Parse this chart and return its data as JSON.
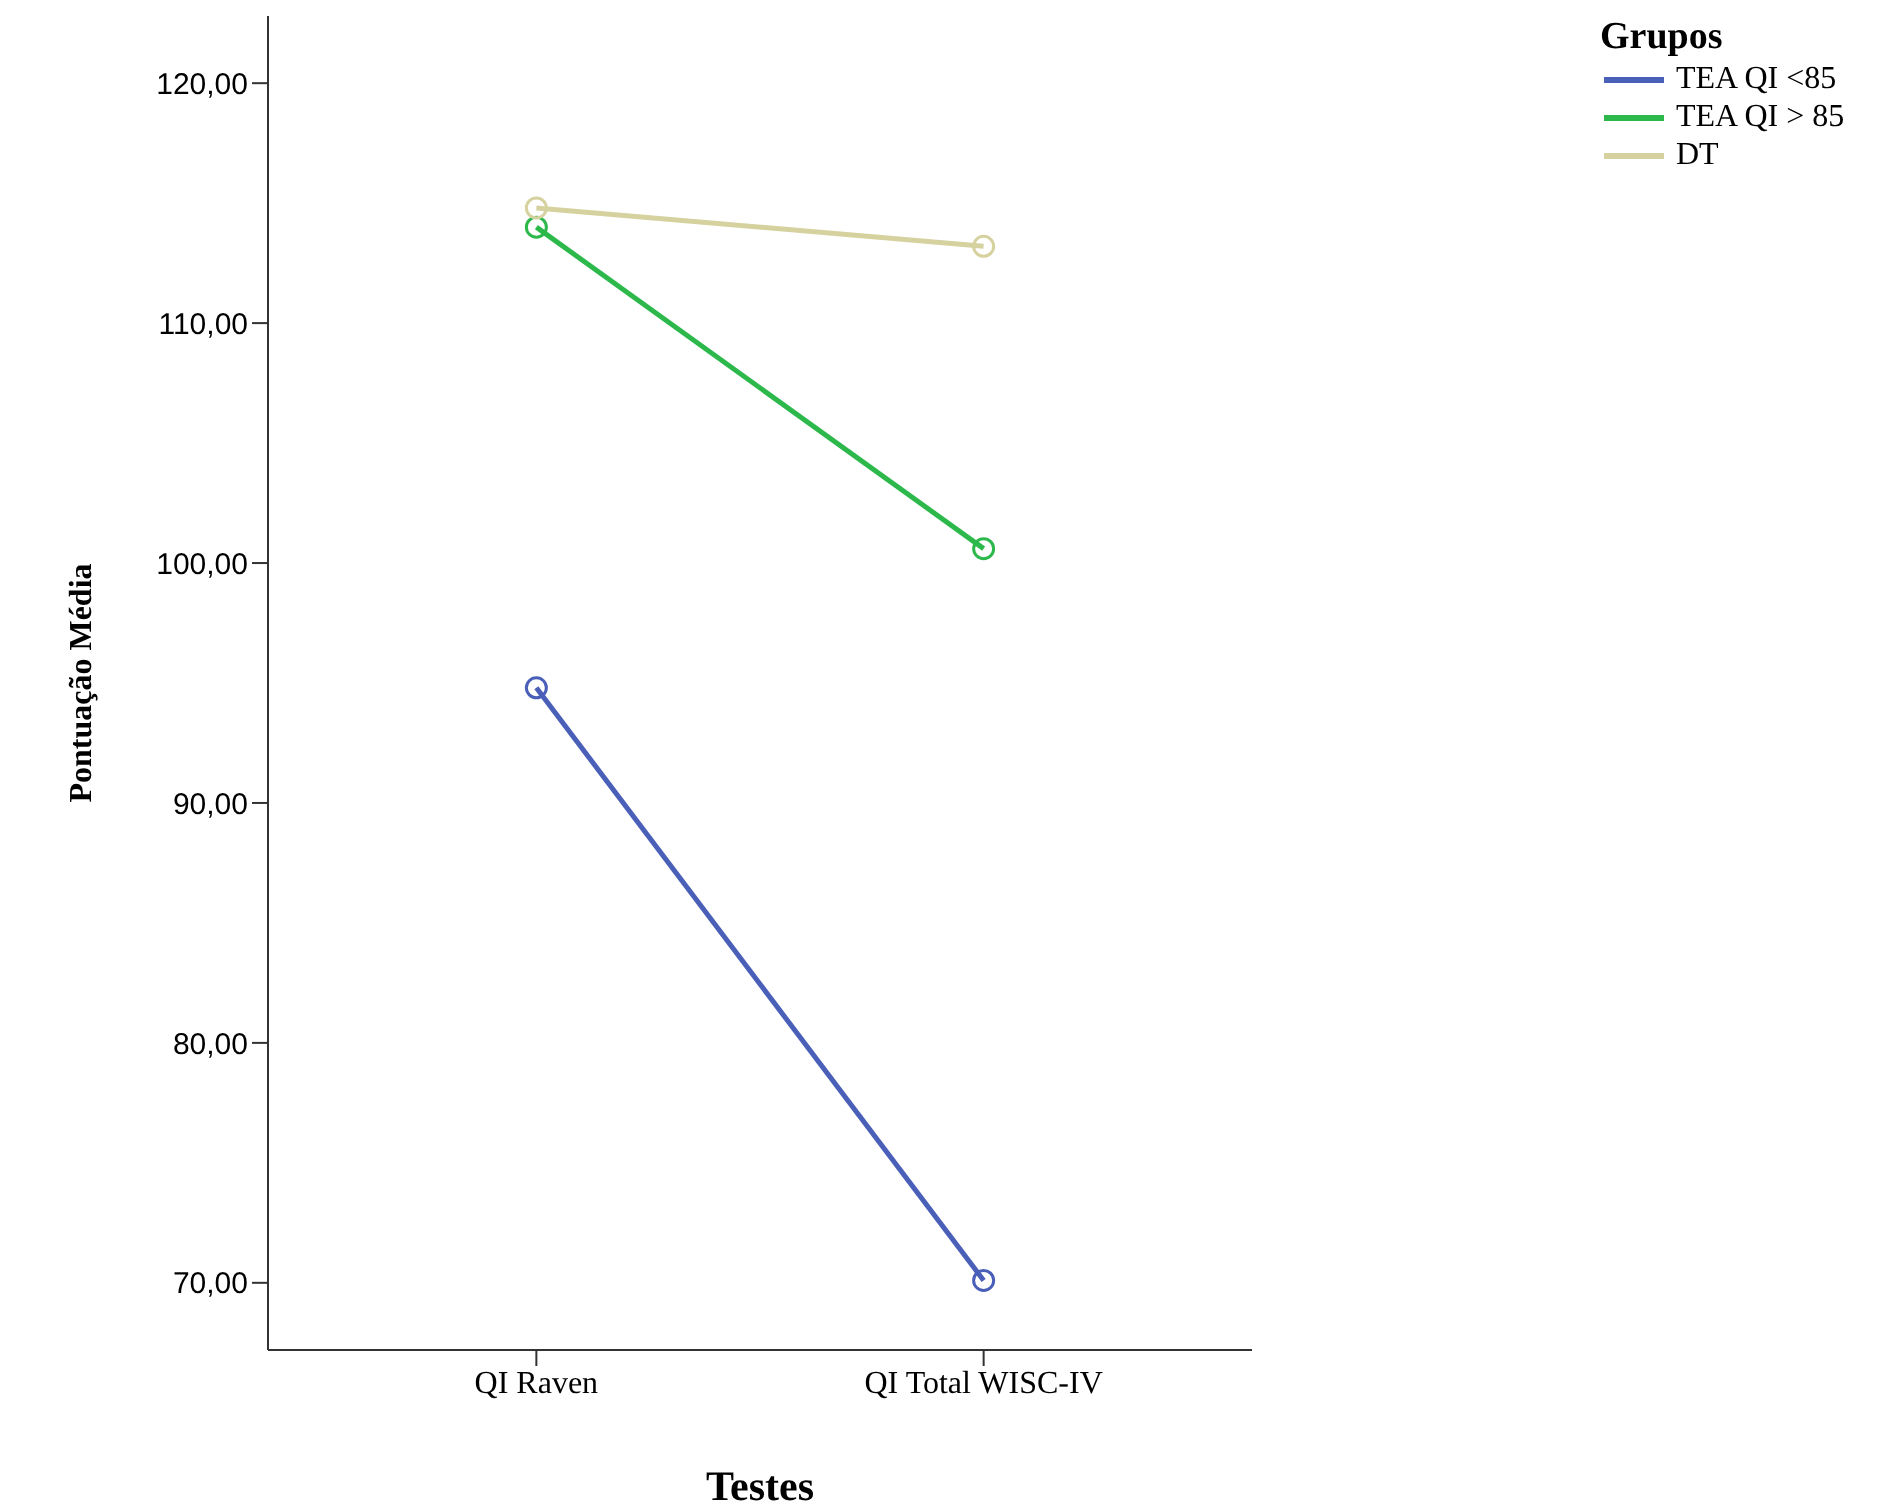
{
  "chart_data": {
    "type": "line",
    "xlabel": "Testes",
    "ylabel": "Pontuação Média",
    "legend_title": "Grupos",
    "legend": "top right",
    "grid": false,
    "marker": "circle",
    "line_style": "solid",
    "categories": [
      "QI Raven",
      "QI Total WISC-IV"
    ],
    "ylim": [
      67.2,
      122.8
    ],
    "yticks": [
      {
        "value": 70,
        "label": "70,00"
      },
      {
        "value": 80,
        "label": "80,00"
      },
      {
        "value": 90,
        "label": "90,00"
      },
      {
        "value": 100,
        "label": "100,00"
      },
      {
        "value": 110,
        "label": "110,00"
      },
      {
        "value": 120,
        "label": "120,00"
      }
    ],
    "series": [
      {
        "name": "TEA QI <85",
        "color": "#4a5fb8",
        "values": [
          94.8,
          70.1
        ]
      },
      {
        "name": "TEA QI > 85",
        "color": "#2cb84a",
        "values": [
          114.0,
          100.6
        ]
      },
      {
        "name": "DT",
        "color": "#d6d2a0",
        "values": [
          114.8,
          113.2
        ]
      }
    ]
  }
}
